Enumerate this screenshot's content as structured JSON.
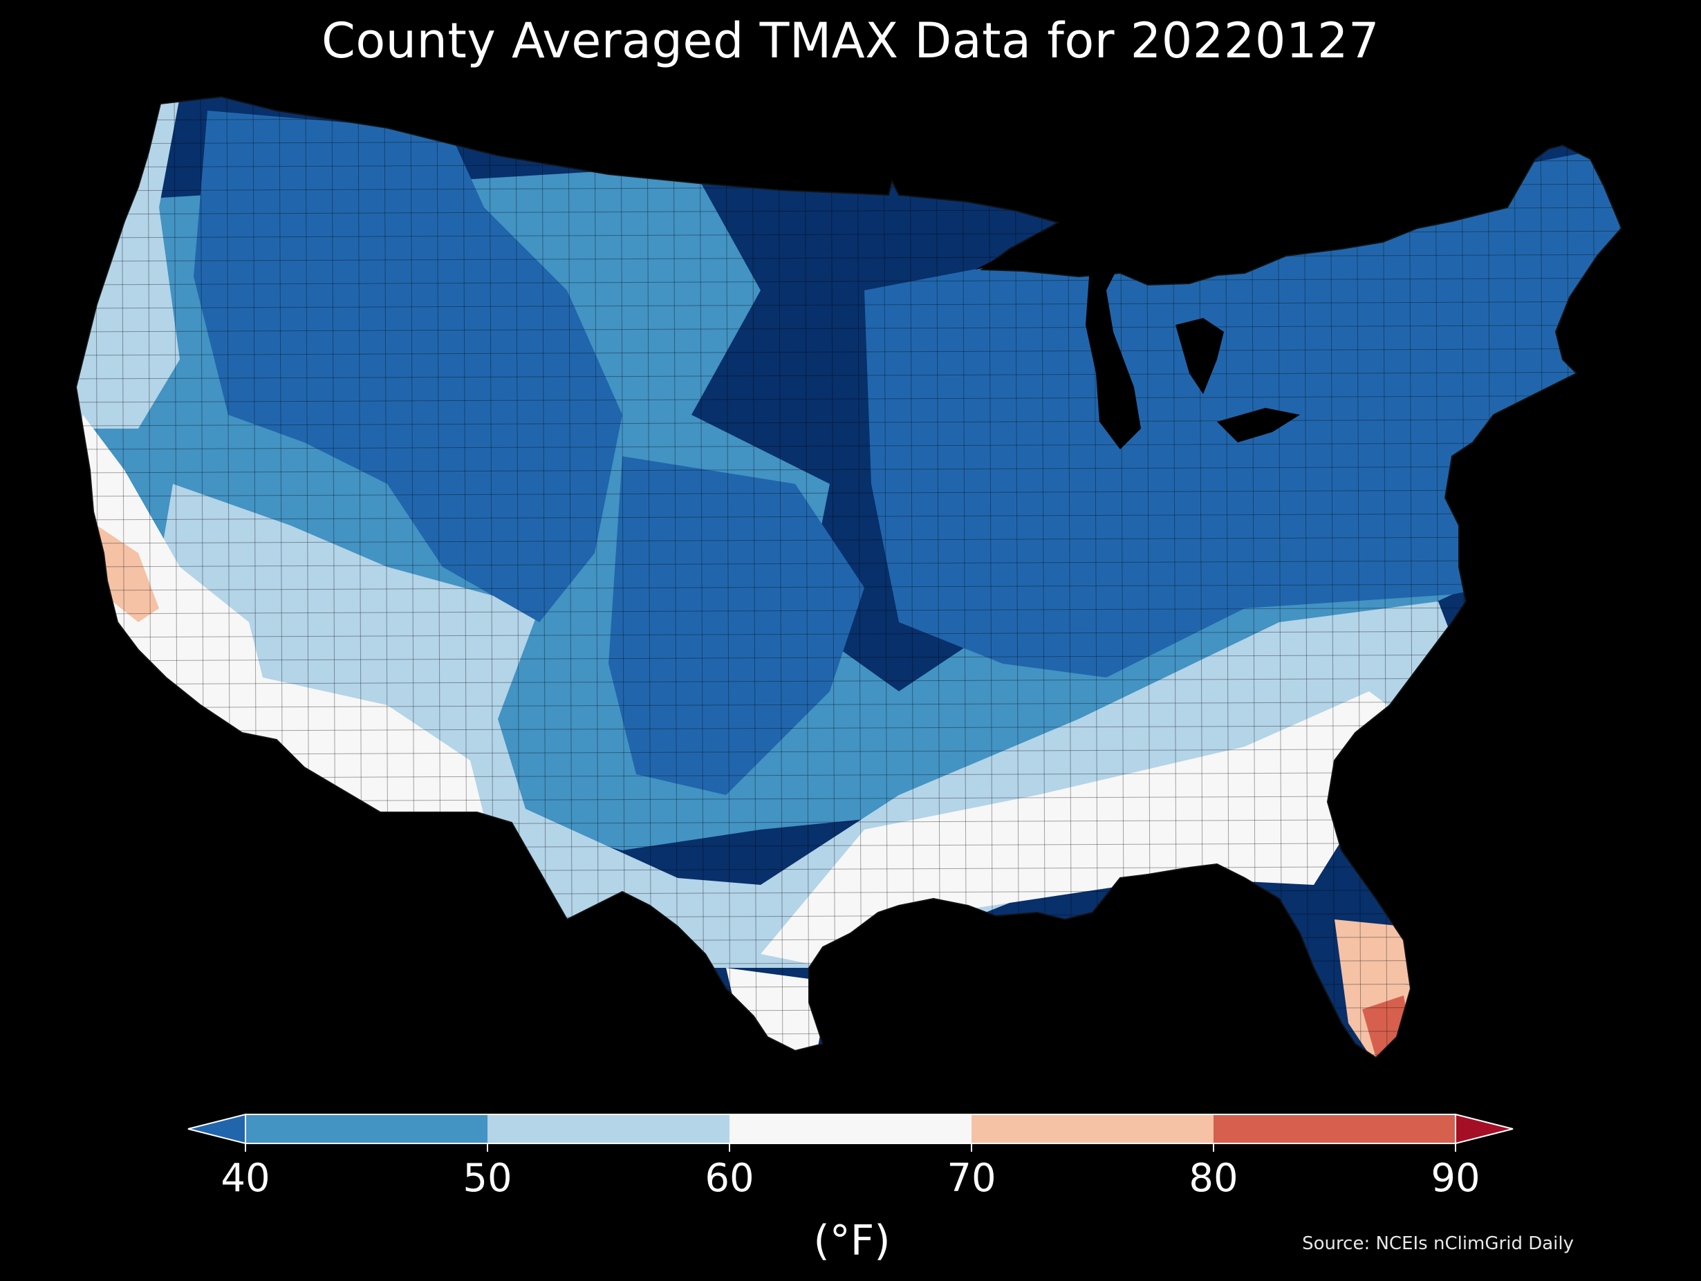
{
  "title": "County Averaged TMAX Data for 20220127",
  "map": {
    "region": "contiguous-us-counties",
    "variable": "TMAX",
    "date": "20220127",
    "regional_pattern": [
      {
        "region": "Pacific Northwest coast",
        "range_f": "50-60"
      },
      {
        "region": "Northern Rockies / Great Basin",
        "range_f": "<40"
      },
      {
        "region": "California coast",
        "range_f": "60-70"
      },
      {
        "region": "Southern California / Arizona desert",
        "range_f": "60-70"
      },
      {
        "region": "Nevada / Utah",
        "range_f": "40-50"
      },
      {
        "region": "Colorado / New Mexico high terrain",
        "range_f": "<40"
      },
      {
        "region": "Northern Plains",
        "range_f": "40-50"
      },
      {
        "region": "Upper Midwest / Great Lakes / Northeast",
        "range_f": "<40"
      },
      {
        "region": "Mid-Atlantic",
        "range_f": "40-50"
      },
      {
        "region": "Southeast / Gulf Coast",
        "range_f": "50-70"
      },
      {
        "region": "South Florida",
        "range_f": "70-80"
      },
      {
        "region": "South Texas tip",
        "range_f": "60-70"
      }
    ]
  },
  "colorbar": {
    "ticks": [
      "40",
      "50",
      "60",
      "70",
      "80",
      "90"
    ],
    "tick_values": [
      40,
      50,
      60,
      70,
      80,
      90
    ],
    "unit": "(°F)",
    "colors": {
      "below_40": "#2166ac",
      "b40_50": "#4393c3",
      "b50_60": "#b4d4e8",
      "b60_70": "#f7f7f7",
      "b70_80": "#f5c2a6",
      "b80_90": "#d6604d",
      "above_90": "#a50f26"
    }
  },
  "source": "Source: NCEIs nClimGrid Daily"
}
